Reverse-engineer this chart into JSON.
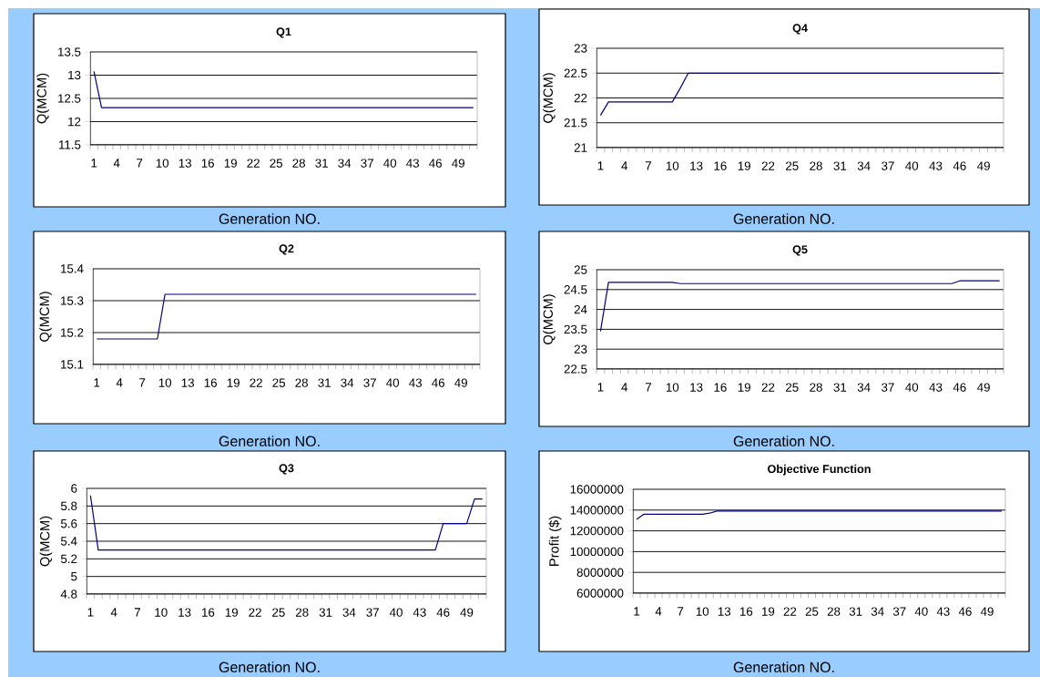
{
  "chart_data": [
    {
      "type": "line",
      "title": "Q1",
      "xlabel": "Generation NO.",
      "ylabel": "Q(MCM)",
      "grid": "y",
      "ylim": [
        11.5,
        13.5
      ],
      "yticks": [
        11.5,
        12,
        12.5,
        13,
        13.5
      ],
      "categories": [
        "1",
        null,
        null,
        "4",
        null,
        null,
        "7",
        null,
        null,
        "10",
        null,
        null,
        "13",
        null,
        null,
        "16",
        null,
        null,
        "19",
        null,
        null,
        "22",
        null,
        null,
        "25",
        null,
        null,
        "28",
        null,
        null,
        "31",
        null,
        null,
        "34",
        null,
        null,
        "37",
        null,
        null,
        "40",
        null,
        null,
        "43",
        null,
        null,
        "46",
        null,
        null,
        "49",
        null,
        null
      ],
      "series": [
        {
          "color": "#000080",
          "values": [
            13.08,
            12.3,
            12.3,
            12.3,
            12.3,
            12.3,
            12.3,
            12.3,
            12.3,
            12.3,
            12.3,
            12.3,
            12.3,
            12.3,
            12.3,
            12.3,
            12.3,
            12.3,
            12.3,
            12.3,
            12.3,
            12.3,
            12.3,
            12.3,
            12.3,
            12.3,
            12.3,
            12.3,
            12.3,
            12.3,
            12.3,
            12.3,
            12.3,
            12.3,
            12.3,
            12.3,
            12.3,
            12.3,
            12.3,
            12.3,
            12.3,
            12.3,
            12.3,
            12.3,
            12.3,
            12.3,
            12.3,
            12.3,
            12.3,
            12.3,
            12.3
          ]
        }
      ]
    },
    {
      "type": "line",
      "title": "Q4",
      "xlabel": "Generation NO.",
      "ylabel": "Q(MCM)",
      "grid": "y",
      "ylim": [
        21,
        23
      ],
      "yticks": [
        21,
        21.5,
        22,
        22.5,
        23
      ],
      "categories": [
        "1",
        null,
        null,
        "4",
        null,
        null,
        "7",
        null,
        null,
        "10",
        null,
        null,
        "13",
        null,
        null,
        "16",
        null,
        null,
        "19",
        null,
        null,
        "22",
        null,
        null,
        "25",
        null,
        null,
        "28",
        null,
        null,
        "31",
        null,
        null,
        "34",
        null,
        null,
        "37",
        null,
        null,
        "40",
        null,
        null,
        "43",
        null,
        null,
        "46",
        null,
        null,
        "49",
        null,
        null
      ],
      "series": [
        {
          "color": "#000080",
          "values": [
            21.65,
            21.92,
            21.92,
            21.92,
            21.92,
            21.92,
            21.92,
            21.92,
            21.92,
            21.92,
            22.2,
            22.5,
            22.5,
            22.5,
            22.5,
            22.5,
            22.5,
            22.5,
            22.5,
            22.5,
            22.5,
            22.5,
            22.5,
            22.5,
            22.5,
            22.5,
            22.5,
            22.5,
            22.5,
            22.5,
            22.5,
            22.5,
            22.5,
            22.5,
            22.5,
            22.5,
            22.5,
            22.5,
            22.5,
            22.5,
            22.5,
            22.5,
            22.5,
            22.5,
            22.5,
            22.5,
            22.5,
            22.5,
            22.5,
            22.5,
            22.5
          ]
        }
      ]
    },
    {
      "type": "line",
      "title": "Q2",
      "xlabel": "Generation NO.",
      "ylabel": "Q(MCM)",
      "grid": "y",
      "ylim": [
        15.1,
        15.4
      ],
      "yticks": [
        15.1,
        15.2,
        15.3,
        15.4
      ],
      "categories": [
        "1",
        null,
        null,
        "4",
        null,
        null,
        "7",
        null,
        null,
        "10",
        null,
        null,
        "13",
        null,
        null,
        "16",
        null,
        null,
        "19",
        null,
        null,
        "22",
        null,
        null,
        "25",
        null,
        null,
        "28",
        null,
        null,
        "31",
        null,
        null,
        "34",
        null,
        null,
        "37",
        null,
        null,
        "40",
        null,
        null,
        "43",
        null,
        null,
        "46",
        null,
        null,
        "49",
        null,
        null
      ],
      "series": [
        {
          "color": "#000080",
          "values": [
            15.18,
            15.18,
            15.18,
            15.18,
            15.18,
            15.18,
            15.18,
            15.18,
            15.18,
            15.32,
            15.32,
            15.32,
            15.32,
            15.32,
            15.32,
            15.32,
            15.32,
            15.32,
            15.32,
            15.32,
            15.32,
            15.32,
            15.32,
            15.32,
            15.32,
            15.32,
            15.32,
            15.32,
            15.32,
            15.32,
            15.32,
            15.32,
            15.32,
            15.32,
            15.32,
            15.32,
            15.32,
            15.32,
            15.32,
            15.32,
            15.32,
            15.32,
            15.32,
            15.32,
            15.32,
            15.32,
            15.32,
            15.32,
            15.32,
            15.32,
            15.32
          ]
        }
      ]
    },
    {
      "type": "line",
      "title": "Q5",
      "xlabel": "Generation NO.",
      "ylabel": "Q(MCM)",
      "grid": "y",
      "ylim": [
        22.5,
        25
      ],
      "yticks": [
        22.5,
        23,
        23.5,
        24,
        24.5,
        25
      ],
      "categories": [
        "1",
        null,
        null,
        "4",
        null,
        null,
        "7",
        null,
        null,
        "10",
        null,
        null,
        "13",
        null,
        null,
        "16",
        null,
        null,
        "19",
        null,
        null,
        "22",
        null,
        null,
        "25",
        null,
        null,
        "28",
        null,
        null,
        "31",
        null,
        null,
        "34",
        null,
        null,
        "37",
        null,
        null,
        "40",
        null,
        null,
        "43",
        null,
        null,
        "46",
        null,
        null,
        "49",
        null,
        null
      ],
      "series": [
        {
          "color": "#000080",
          "values": [
            23.45,
            24.68,
            24.68,
            24.68,
            24.68,
            24.68,
            24.68,
            24.68,
            24.68,
            24.68,
            24.65,
            24.65,
            24.65,
            24.65,
            24.65,
            24.65,
            24.65,
            24.65,
            24.65,
            24.65,
            24.65,
            24.65,
            24.65,
            24.65,
            24.65,
            24.65,
            24.65,
            24.65,
            24.65,
            24.65,
            24.65,
            24.65,
            24.65,
            24.65,
            24.65,
            24.65,
            24.65,
            24.65,
            24.65,
            24.65,
            24.65,
            24.65,
            24.65,
            24.65,
            24.65,
            24.72,
            24.72,
            24.72,
            24.72,
            24.72,
            24.72
          ]
        }
      ]
    },
    {
      "type": "line",
      "title": "Q3",
      "xlabel": "Generation NO.",
      "ylabel": "Q(MCM)",
      "grid": "y",
      "ylim": [
        4.8,
        6
      ],
      "yticks": [
        4.8,
        5,
        5.2,
        5.4,
        5.6,
        5.8,
        6
      ],
      "categories": [
        "1",
        null,
        null,
        "4",
        null,
        null,
        "7",
        null,
        null,
        "10",
        null,
        null,
        "13",
        null,
        null,
        "16",
        null,
        null,
        "19",
        null,
        null,
        "22",
        null,
        null,
        "25",
        null,
        null,
        "28",
        null,
        null,
        "31",
        null,
        null,
        "34",
        null,
        null,
        "37",
        null,
        null,
        "40",
        null,
        null,
        "43",
        null,
        null,
        "46",
        null,
        null,
        "49",
        null,
        null
      ],
      "series": [
        {
          "color": "#000080",
          "values": [
            5.92,
            5.3,
            5.3,
            5.3,
            5.3,
            5.3,
            5.3,
            5.3,
            5.3,
            5.3,
            5.3,
            5.3,
            5.3,
            5.3,
            5.3,
            5.3,
            5.3,
            5.3,
            5.3,
            5.3,
            5.3,
            5.3,
            5.3,
            5.3,
            5.3,
            5.3,
            5.3,
            5.3,
            5.3,
            5.3,
            5.3,
            5.3,
            5.3,
            5.3,
            5.3,
            5.3,
            5.3,
            5.3,
            5.3,
            5.3,
            5.3,
            5.3,
            5.3,
            5.3,
            5.3,
            5.6,
            5.6,
            5.6,
            5.6,
            5.88,
            5.88
          ]
        }
      ]
    },
    {
      "type": "line",
      "title": "Objective Function",
      "xlabel": "Generation NO.",
      "ylabel": "Profit ($)",
      "grid": "y",
      "ylim": [
        6000000,
        16000000
      ],
      "yticks": [
        6000000,
        8000000,
        10000000,
        12000000,
        14000000,
        16000000
      ],
      "categories": [
        "1",
        null,
        null,
        "4",
        null,
        null,
        "7",
        null,
        null,
        "10",
        null,
        null,
        "13",
        null,
        null,
        "16",
        null,
        null,
        "19",
        null,
        null,
        "22",
        null,
        null,
        "25",
        null,
        null,
        "28",
        null,
        null,
        "31",
        null,
        null,
        "34",
        null,
        null,
        "37",
        null,
        null,
        "40",
        null,
        null,
        "43",
        null,
        null,
        "46",
        null,
        null,
        "49",
        null,
        null
      ],
      "series": [
        {
          "color": "#000080",
          "values": [
            13100000,
            13600000,
            13600000,
            13600000,
            13600000,
            13600000,
            13600000,
            13600000,
            13600000,
            13600000,
            13700000,
            13900000,
            13900000,
            13900000,
            13900000,
            13900000,
            13900000,
            13900000,
            13900000,
            13900000,
            13900000,
            13900000,
            13900000,
            13900000,
            13900000,
            13900000,
            13900000,
            13900000,
            13900000,
            13900000,
            13900000,
            13900000,
            13900000,
            13900000,
            13900000,
            13900000,
            13900000,
            13900000,
            13900000,
            13900000,
            13900000,
            13900000,
            13900000,
            13900000,
            13900000,
            13900000,
            13900000,
            13900000,
            13900000,
            13900000,
            13900000
          ]
        }
      ]
    }
  ]
}
